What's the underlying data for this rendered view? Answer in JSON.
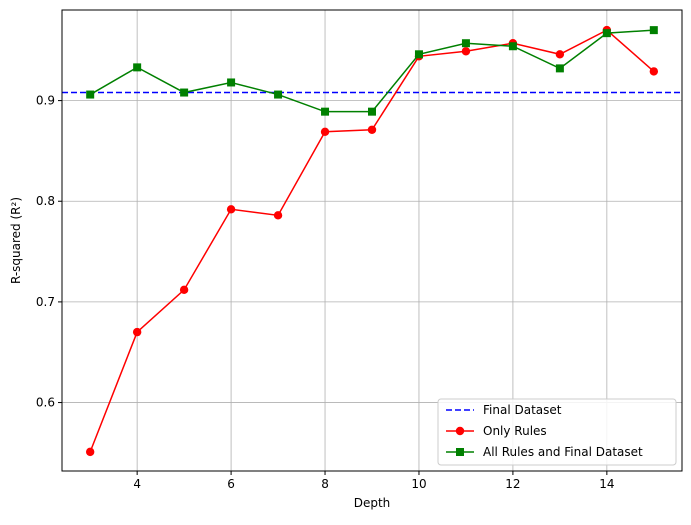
{
  "chart_data": {
    "type": "line",
    "title": "",
    "xlabel": "Depth",
    "ylabel": "R-squared (R²)",
    "xlim": [
      2.4,
      15.6
    ],
    "ylim": [
      0.532,
      0.99
    ],
    "xticks": [
      4,
      6,
      8,
      10,
      12,
      14
    ],
    "yticks": [
      0.6,
      0.7,
      0.8,
      0.9
    ],
    "grid": true,
    "legend_position": "lower-right",
    "baseline": {
      "name": "Final Dataset",
      "value": 0.908,
      "color": "#0000ff",
      "style": "dashed"
    },
    "x": [
      3,
      4,
      5,
      6,
      7,
      8,
      9,
      10,
      11,
      12,
      13,
      14,
      15
    ],
    "series": [
      {
        "name": "Only Rules",
        "color": "#ff0000",
        "marker": "circle",
        "values": [
          0.551,
          0.67,
          0.712,
          0.792,
          0.786,
          0.869,
          0.871,
          0.944,
          0.949,
          0.957,
          0.946,
          0.97,
          0.929
        ]
      },
      {
        "name": "All Rules and Final Dataset",
        "color": "#008000",
        "marker": "square",
        "values": [
          0.906,
          0.933,
          0.908,
          0.918,
          0.906,
          0.889,
          0.889,
          0.946,
          0.957,
          0.954,
          0.932,
          0.967,
          0.97
        ]
      }
    ]
  }
}
